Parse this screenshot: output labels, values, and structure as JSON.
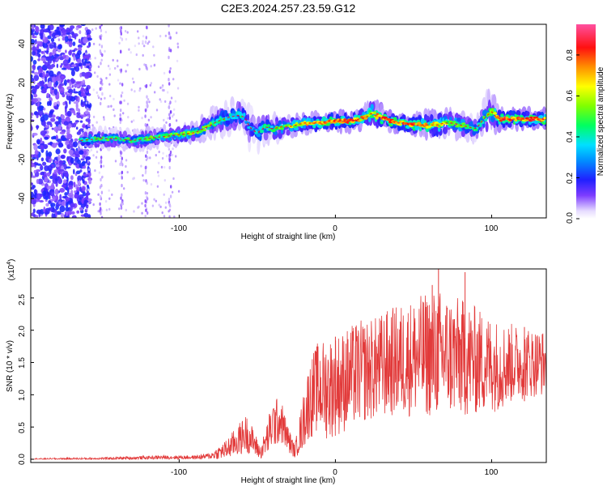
{
  "title": "C2E3.2024.257.23.59.G12",
  "colors": {
    "snr_line": "#e23a3a",
    "trace_core": "#ff1010",
    "point_dim": "#8a2be2"
  },
  "spectrogram": {
    "xlabel": "Height of straight line (km)",
    "ylabel": "Frequency (Hz)",
    "x_ticks": [
      "-100",
      "0",
      "100"
    ],
    "y_ticks": [
      "40",
      "20",
      "0",
      "-20",
      "-40"
    ],
    "colorbar_label": "Normalized spectral amplitude",
    "colorbar_ticks": [
      "0.0",
      "0.2",
      "0.4",
      "0.6",
      "0.8"
    ]
  },
  "snr": {
    "xlabel": "Height of straight line (km)",
    "ylabel": "SNR (10 * v/v)",
    "exponent_label": "(x10",
    "exponent_power": "4",
    "exponent_close": ")",
    "x_ticks": [
      "-100",
      "0",
      "100"
    ],
    "y_ticks": [
      "0.0",
      "0.5",
      "1.0",
      "1.5",
      "2.0",
      "2.5"
    ]
  },
  "chart_data": [
    {
      "type": "heatmap",
      "title": "C2E3.2024.257.23.59.G12",
      "xlabel": "Height of straight line (km)",
      "ylabel": "Frequency (Hz)",
      "xlim": [
        -195,
        135
      ],
      "ylim": [
        -50,
        50
      ],
      "colorbar": {
        "label": "Normalized spectral amplitude",
        "range": [
          0,
          0.95
        ]
      },
      "ridge": {
        "x": [
          -163,
          -150,
          -140,
          -130,
          -120,
          -110,
          -100,
          -90,
          -82,
          -75,
          -68,
          -62,
          -58,
          -55,
          -52,
          -50,
          -48,
          -45,
          -40,
          -35,
          -30,
          -25,
          -20,
          -15,
          -10,
          -5,
          0,
          5,
          10,
          15,
          20,
          23,
          25,
          28,
          32,
          35,
          40,
          45,
          50,
          55,
          60,
          65,
          70,
          75,
          80,
          85,
          90,
          93,
          96,
          100,
          103,
          106,
          110,
          115,
          120,
          125,
          130,
          135
        ],
        "y": [
          -10,
          -9,
          -9,
          -10,
          -9,
          -8,
          -7,
          -6,
          -3,
          0,
          2,
          3,
          2,
          -3,
          -5,
          -6,
          -5,
          -3,
          -4,
          -3,
          -3,
          -2,
          -1,
          -1,
          -1,
          0,
          0,
          0,
          0,
          1,
          2,
          4,
          3,
          2,
          1,
          0,
          -1,
          -1,
          -2,
          -2,
          -2,
          -2,
          -1,
          -1,
          -2,
          -3,
          -4,
          -1,
          2,
          5,
          2,
          1,
          1,
          1,
          1,
          1,
          1,
          1
        ],
        "width_hz": [
          3,
          3,
          3,
          3,
          3,
          3,
          3,
          3,
          4,
          5,
          5,
          5,
          5,
          6,
          6,
          6,
          6,
          5,
          4,
          4,
          3,
          3,
          3,
          3,
          3,
          3,
          3,
          3,
          3,
          3,
          4,
          6,
          5,
          4,
          3,
          3,
          3,
          3,
          3,
          4,
          4,
          4,
          4,
          4,
          4,
          4,
          4,
          4,
          6,
          7,
          4,
          3,
          3,
          3,
          3,
          3,
          3,
          3
        ],
        "amplitude": [
          0.45,
          0.5,
          0.5,
          0.5,
          0.55,
          0.55,
          0.6,
          0.6,
          0.55,
          0.5,
          0.45,
          0.45,
          0.4,
          0.35,
          0.35,
          0.4,
          0.4,
          0.45,
          0.5,
          0.55,
          0.6,
          0.65,
          0.7,
          0.75,
          0.8,
          0.85,
          0.85,
          0.85,
          0.85,
          0.8,
          0.75,
          0.6,
          0.7,
          0.8,
          0.85,
          0.85,
          0.85,
          0.85,
          0.85,
          0.8,
          0.75,
          0.7,
          0.65,
          0.6,
          0.55,
          0.5,
          0.45,
          0.5,
          0.5,
          0.55,
          0.7,
          0.85,
          0.85,
          0.85,
          0.85,
          0.85,
          0.85,
          0.85
        ]
      },
      "noise_region_x": [
        -195,
        -160
      ]
    },
    {
      "type": "line",
      "xlabel": "Height of straight line (km)",
      "ylabel": "SNR (10 * v/v)",
      "xlim": [
        -195,
        135
      ],
      "ylim": [
        -0.05,
        2.95
      ],
      "y_multiplier": "x10^4",
      "grid": false,
      "envelope": {
        "x": [
          -195,
          -150,
          -110,
          -90,
          -80,
          -70,
          -62,
          -57,
          -52,
          -48,
          -44,
          -40,
          -35,
          -30,
          -26,
          -22,
          -17,
          -12,
          -5,
          5,
          15,
          25,
          35,
          45,
          55,
          65,
          75,
          85,
          95,
          105,
          115,
          125,
          135
        ],
        "mean": [
          0.005,
          0.01,
          0.03,
          0.03,
          0.05,
          0.15,
          0.3,
          0.4,
          0.25,
          0.1,
          0.3,
          0.55,
          0.6,
          0.3,
          0.12,
          0.45,
          0.9,
          1.1,
          1.1,
          1.2,
          1.35,
          1.4,
          1.5,
          1.55,
          1.6,
          1.65,
          1.6,
          1.55,
          1.5,
          1.45,
          1.5,
          1.5,
          1.5
        ],
        "amplitude": [
          0.01,
          0.02,
          0.03,
          0.03,
          0.05,
          0.15,
          0.25,
          0.3,
          0.2,
          0.1,
          0.25,
          0.4,
          0.35,
          0.2,
          0.1,
          0.35,
          0.6,
          0.7,
          0.8,
          0.8,
          0.8,
          0.8,
          0.85,
          0.9,
          0.95,
          1.0,
          0.95,
          0.9,
          0.8,
          0.7,
          0.6,
          0.55,
          0.5
        ]
      },
      "peaks": [
        {
          "x": 0,
          "y": 1.9
        },
        {
          "x": 13,
          "y": 2.05
        },
        {
          "x": 62,
          "y": 2.7
        },
        {
          "x": 66,
          "y": 2.95
        },
        {
          "x": 83,
          "y": 2.9
        },
        {
          "x": 121,
          "y": 2.05
        }
      ]
    }
  ]
}
